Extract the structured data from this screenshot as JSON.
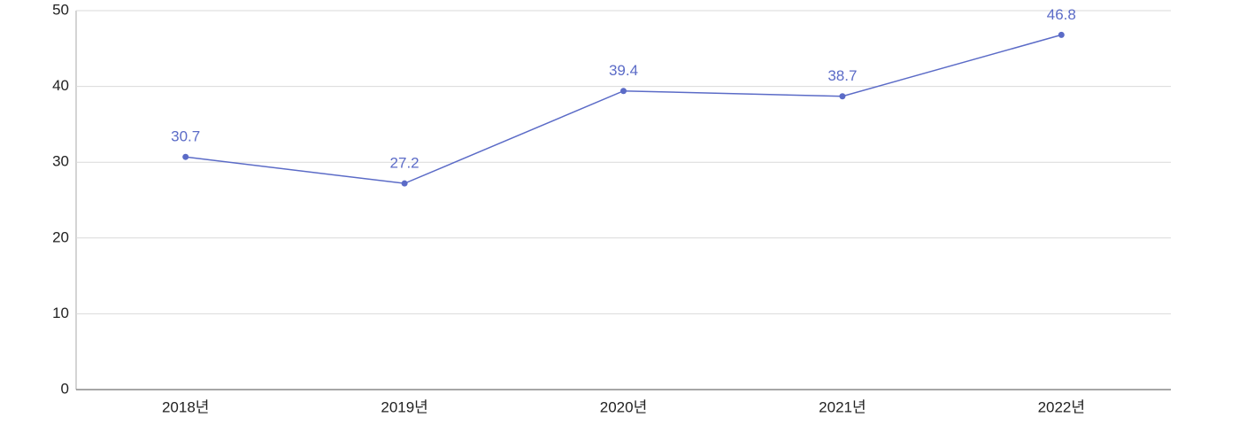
{
  "chart_data": {
    "type": "line",
    "categories": [
      "2018년",
      "2019년",
      "2020년",
      "2021년",
      "2022년"
    ],
    "values": [
      30.7,
      27.2,
      39.4,
      38.7,
      46.8
    ],
    "color": "#5b6bc7",
    "ylim": [
      0,
      50
    ],
    "yticks": [
      0,
      10,
      20,
      30,
      40,
      50
    ],
    "grid": true
  }
}
